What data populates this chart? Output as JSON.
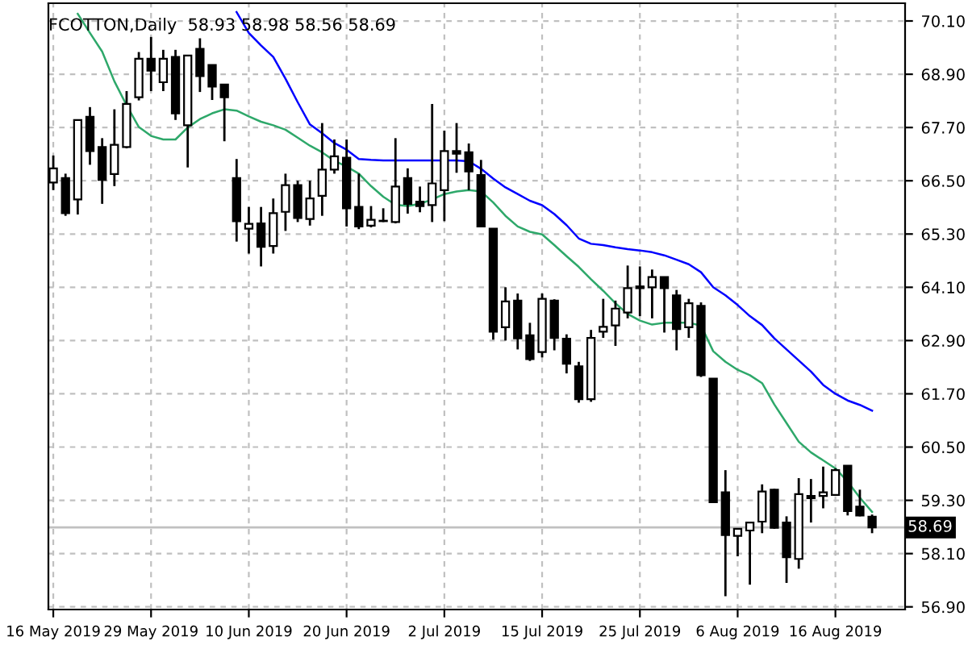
{
  "chart_data": {
    "type": "candlestick",
    "title": "FCOTTON,Daily  58.93 58.98 58.56 58.69",
    "categories": [
      "16 May 2019",
      null,
      null,
      null,
      null,
      null,
      null,
      null,
      "29 May 2019",
      null,
      null,
      null,
      null,
      null,
      null,
      null,
      "10 Jun 2019",
      null,
      null,
      null,
      null,
      null,
      null,
      null,
      "20 Jun 2019",
      null,
      null,
      null,
      null,
      null,
      null,
      null,
      "2 Jul 2019",
      null,
      null,
      null,
      null,
      null,
      null,
      null,
      "15 Jul 2019",
      null,
      null,
      null,
      null,
      null,
      null,
      null,
      "25 Jul 2019",
      null,
      null,
      null,
      null,
      null,
      null,
      null,
      "6 Aug 2019",
      null,
      null,
      null,
      null,
      null,
      null,
      null,
      "16 Aug 2019",
      null,
      null,
      null
    ],
    "ohlc": [
      [
        66.46,
        67.07,
        66.29,
        66.78
      ],
      [
        66.56,
        66.66,
        65.71,
        65.77
      ],
      [
        66.08,
        67.87,
        65.74,
        67.87
      ],
      [
        67.94,
        68.16,
        66.86,
        67.17
      ],
      [
        67.26,
        67.46,
        65.98,
        66.52
      ],
      [
        66.65,
        68.11,
        66.38,
        67.31
      ],
      [
        67.26,
        68.52,
        67.23,
        68.23
      ],
      [
        68.38,
        69.4,
        68.31,
        69.25
      ],
      [
        69.25,
        69.74,
        68.52,
        68.98
      ],
      [
        68.72,
        69.45,
        68.52,
        69.25
      ],
      [
        69.29,
        69.45,
        67.87,
        68.02
      ],
      [
        67.75,
        69.32,
        66.8,
        69.32
      ],
      [
        69.47,
        69.71,
        68.5,
        68.86
      ],
      [
        69.11,
        69.11,
        68.32,
        68.62
      ],
      [
        68.67,
        68.67,
        67.39,
        68.38
      ],
      [
        66.56,
        66.99,
        65.13,
        65.59
      ],
      [
        65.42,
        65.91,
        64.86,
        65.53
      ],
      [
        65.54,
        65.91,
        64.57,
        65.01
      ],
      [
        65.03,
        66.1,
        64.86,
        65.77
      ],
      [
        65.8,
        66.66,
        65.37,
        66.4
      ],
      [
        66.4,
        66.5,
        65.57,
        65.66
      ],
      [
        65.64,
        66.5,
        65.49,
        66.1
      ],
      [
        66.16,
        67.8,
        65.71,
        66.75
      ],
      [
        66.75,
        67.43,
        66.66,
        67.05
      ],
      [
        67.02,
        67.43,
        65.47,
        65.88
      ],
      [
        65.91,
        66.66,
        65.41,
        65.47
      ],
      [
        65.49,
        65.93,
        65.45,
        65.62
      ],
      [
        65.59,
        65.88,
        65.57,
        65.6
      ],
      [
        65.57,
        67.46,
        65.54,
        66.37
      ],
      [
        66.56,
        66.78,
        65.76,
        65.98
      ],
      [
        66.03,
        66.37,
        65.79,
        65.93
      ],
      [
        65.95,
        68.23,
        65.57,
        66.44
      ],
      [
        66.29,
        67.63,
        65.59,
        67.17
      ],
      [
        67.17,
        67.8,
        66.68,
        67.11
      ],
      [
        67.14,
        67.34,
        66.29,
        66.71
      ],
      [
        66.63,
        66.97,
        65.45,
        65.47
      ],
      [
        65.42,
        65.42,
        62.92,
        63.1
      ],
      [
        63.2,
        64.1,
        62.9,
        63.78
      ],
      [
        63.8,
        63.96,
        62.7,
        62.95
      ],
      [
        63.02,
        63.3,
        62.44,
        62.48
      ],
      [
        62.64,
        63.96,
        62.52,
        63.84
      ],
      [
        63.8,
        63.83,
        62.68,
        62.96
      ],
      [
        62.94,
        63.04,
        62.16,
        62.38
      ],
      [
        62.32,
        62.42,
        61.5,
        61.58
      ],
      [
        61.58,
        63.14,
        61.52,
        62.96
      ],
      [
        63.1,
        63.84,
        62.96,
        63.21
      ],
      [
        63.24,
        63.8,
        62.78,
        63.62
      ],
      [
        63.53,
        64.59,
        63.4,
        64.08
      ],
      [
        64.12,
        64.57,
        63.45,
        64.08
      ],
      [
        64.1,
        64.5,
        63.4,
        64.33
      ],
      [
        64.33,
        64.33,
        63.08,
        64.08
      ],
      [
        63.92,
        64.04,
        62.68,
        63.16
      ],
      [
        63.2,
        63.84,
        62.96,
        63.74
      ],
      [
        63.68,
        63.76,
        62.08,
        62.12
      ],
      [
        62.04,
        62.04,
        59.24,
        59.26
      ],
      [
        59.48,
        59.98,
        57.14,
        58.52
      ],
      [
        58.5,
        58.66,
        58.04,
        58.66
      ],
      [
        58.62,
        58.8,
        57.4,
        58.8
      ],
      [
        58.82,
        59.66,
        58.56,
        59.5
      ],
      [
        59.54,
        59.56,
        58.66,
        58.68
      ],
      [
        58.8,
        58.94,
        57.44,
        58.02
      ],
      [
        57.98,
        59.8,
        57.76,
        59.44
      ],
      [
        59.4,
        59.78,
        58.8,
        59.35
      ],
      [
        59.4,
        60.06,
        59.12,
        59.48
      ],
      [
        59.42,
        60.02,
        59.4,
        59.98
      ],
      [
        60.08,
        60.08,
        58.96,
        59.06
      ],
      [
        59.16,
        59.54,
        58.94,
        58.96
      ],
      [
        58.93,
        58.98,
        58.56,
        58.69
      ]
    ],
    "series": [
      {
        "type": "line",
        "color": "#2ea86a",
        "values": [
          null,
          null,
          70.26,
          69.83,
          69.41,
          68.74,
          68.2,
          67.71,
          67.51,
          67.43,
          67.43,
          67.7,
          67.89,
          68.02,
          68.11,
          68.08,
          67.95,
          67.83,
          67.75,
          67.65,
          67.47,
          67.29,
          67.14,
          66.95,
          66.82,
          66.66,
          66.38,
          66.14,
          65.96,
          65.93,
          65.98,
          66.08,
          66.2,
          66.26,
          66.29,
          66.26,
          66.01,
          65.71,
          65.47,
          65.35,
          65.29,
          65.05,
          64.8,
          64.56,
          64.28,
          64.02,
          63.74,
          63.5,
          63.35,
          63.26,
          63.3,
          63.3,
          63.3,
          63.24,
          62.66,
          62.42,
          62.24,
          62.12,
          61.94,
          61.46,
          61.04,
          60.62,
          60.38,
          60.2,
          60.02,
          59.72,
          59.36,
          59.04
        ]
      },
      {
        "type": "line",
        "color": "#0000ff",
        "values": [
          null,
          null,
          null,
          null,
          null,
          null,
          null,
          null,
          null,
          null,
          null,
          null,
          null,
          null,
          null,
          70.3,
          69.83,
          69.55,
          69.29,
          68.8,
          68.27,
          67.77,
          67.57,
          67.35,
          67.2,
          66.99,
          66.97,
          66.96,
          66.96,
          66.96,
          66.96,
          66.96,
          66.96,
          66.96,
          66.94,
          66.77,
          66.55,
          66.35,
          66.2,
          66.05,
          65.95,
          65.75,
          65.5,
          65.2,
          65.08,
          65.05,
          65.0,
          64.96,
          64.93,
          64.89,
          64.82,
          64.72,
          64.62,
          64.44,
          64.1,
          63.92,
          63.7,
          63.45,
          63.25,
          62.95,
          62.7,
          62.45,
          62.2,
          61.9,
          61.7,
          61.55,
          61.45,
          61.32
        ]
      }
    ],
    "ylim": [
      56.84,
      70.5
    ],
    "yticks": [
      {
        "value": 56.9,
        "label": "56.90"
      },
      {
        "value": 58.1,
        "label": "58.10"
      },
      {
        "value": 59.3,
        "label": "59.30"
      },
      {
        "value": 60.5,
        "label": "60.50"
      },
      {
        "value": 61.7,
        "label": "61.70"
      },
      {
        "value": 62.9,
        "label": "62.90"
      },
      {
        "value": 64.1,
        "label": "64.10"
      },
      {
        "value": 65.3,
        "label": "65.30"
      },
      {
        "value": 66.5,
        "label": "66.50"
      },
      {
        "value": 67.7,
        "label": "67.70"
      },
      {
        "value": 68.9,
        "label": "68.90"
      },
      {
        "value": 70.1,
        "label": "70.10"
      }
    ],
    "ref_lines": [
      {
        "axis": "y",
        "value": 58.69,
        "label": "58.69",
        "color": "#c0c0c0"
      }
    ],
    "grid": true
  }
}
